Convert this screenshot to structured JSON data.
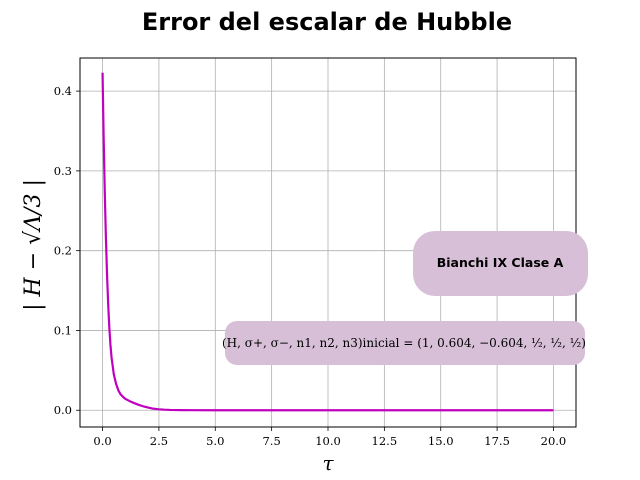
{
  "chart_data": {
    "type": "line",
    "title": "Error del escalar de Hubble",
    "xlabel": "τ",
    "ylabel": "| H − √Λ/3 |",
    "xlim": [
      -1,
      21
    ],
    "ylim": [
      -0.021,
      0.4415
    ],
    "xticks": [
      0.0,
      2.5,
      5.0,
      7.5,
      10.0,
      12.5,
      15.0,
      17.5,
      20.0
    ],
    "xtick_labels": [
      "0.0",
      "2.5",
      "5.0",
      "7.5",
      "10.0",
      "12.5",
      "15.0",
      "17.5",
      "20.0"
    ],
    "yticks": [
      0.0,
      0.1,
      0.2,
      0.3,
      0.4
    ],
    "ytick_labels": [
      "0.0",
      "0.1",
      "0.2",
      "0.3",
      "0.4"
    ],
    "grid": true,
    "series": [
      {
        "color": "#bf00bf",
        "x": [
          0.0,
          0.05,
          0.1,
          0.15,
          0.2,
          0.25,
          0.3,
          0.35,
          0.4,
          0.5,
          0.6,
          0.7,
          0.8,
          0.9,
          1.0,
          1.2,
          1.4,
          1.6,
          1.8,
          2.0,
          2.25,
          2.5,
          2.75,
          3.0,
          3.5,
          4.0,
          5.0,
          6.0,
          8.0,
          10.0,
          12.0,
          14.0,
          16.0,
          18.0,
          20.0
        ],
        "y": [
          0.423,
          0.34,
          0.272,
          0.215,
          0.17,
          0.133,
          0.104,
          0.082,
          0.066,
          0.045,
          0.033,
          0.025,
          0.02,
          0.017,
          0.0145,
          0.0115,
          0.009,
          0.0068,
          0.005,
          0.0035,
          0.002,
          0.0012,
          0.0007,
          0.0004,
          0.0002,
          0.0001,
          0.0,
          0.0,
          0.0,
          0.0,
          0.0,
          0.0,
          0.0,
          0.0,
          0.0
        ]
      }
    ],
    "annotations": [
      {
        "text": "Bianchi IX Clase A",
        "background": "#d8bfd8"
      },
      {
        "text": "(H, σ+, σ−, n1, n2, n3)inicial = (1, 0.604, −0.604, ½, ½, ½)",
        "background": "#d8bfd8"
      }
    ]
  }
}
